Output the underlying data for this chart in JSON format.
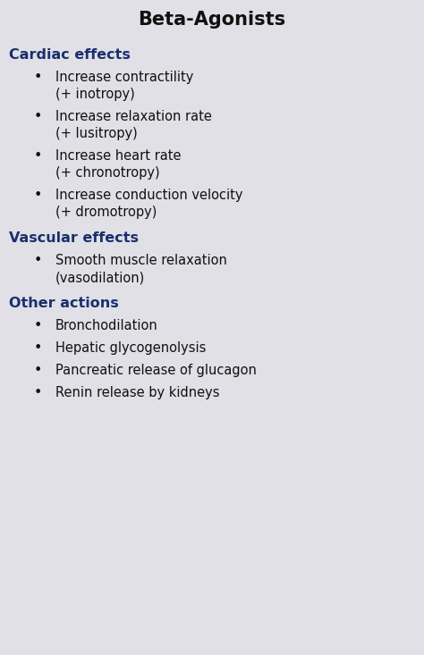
{
  "title": "Beta-Agonists",
  "title_color": "#111111",
  "title_fontsize": 15,
  "background_color": "#e0e0e6",
  "section_color": "#1a2f6e",
  "bullet_color": "#111111",
  "heading_fontsize": 11.5,
  "bullet_fontsize": 10.5,
  "sections": [
    {
      "heading": "Cardiac effects",
      "bullets": [
        [
          "Increase contractility",
          "(+ inotropy)"
        ],
        [
          "Increase relaxation rate",
          "(+ lusitropy)"
        ],
        [
          "Increase heart rate",
          "(+ chronotropy)"
        ],
        [
          "Increase conduction velocity",
          "(+ dromotropy)"
        ]
      ]
    },
    {
      "heading": "Vascular effects",
      "bullets": [
        [
          "Smooth muscle relaxation",
          "(vasodilation)"
        ]
      ]
    },
    {
      "heading": "Other actions",
      "bullets": [
        [
          "Bronchodilation"
        ],
        [
          "Hepatic glycogenolysis"
        ],
        [
          "Pancreatic release of glucagon"
        ],
        [
          "Renin release by kidneys"
        ]
      ]
    }
  ]
}
